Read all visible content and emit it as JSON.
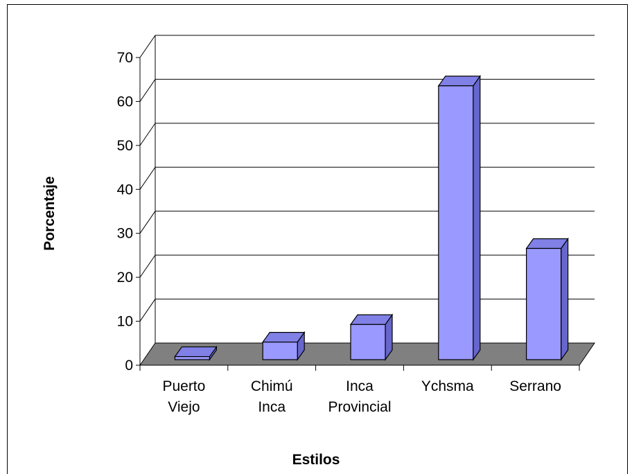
{
  "chart_data": {
    "type": "bar",
    "style": "3d-column",
    "categories": [
      [
        "Puerto",
        "Viejo"
      ],
      [
        "Chimú",
        "Inca"
      ],
      [
        "Inca",
        "Provincial"
      ],
      [
        "Ychsma"
      ],
      [
        "Serrano"
      ]
    ],
    "values": [
      0.7,
      4,
      8,
      62.3,
      25.3
    ],
    "xlabel": "Estilos",
    "ylabel": "Porcentaje",
    "ylim": [
      0,
      70
    ],
    "yticks": [
      0,
      10,
      20,
      30,
      40,
      50,
      60,
      70
    ],
    "grid": true,
    "colors": {
      "bar_front": "#9999ff",
      "bar_side": "#6666cc",
      "bar_top": "#8080e6",
      "floor": "#808080"
    }
  }
}
